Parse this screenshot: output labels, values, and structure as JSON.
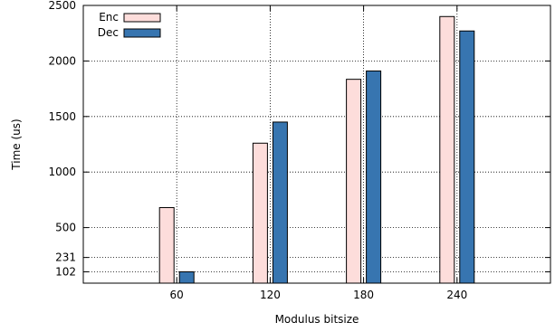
{
  "chart_data": {
    "type": "bar",
    "title": "",
    "xlabel": "Modulus bitsize",
    "ylabel": "Time (us)",
    "ylim": [
      0,
      2500
    ],
    "grid": true,
    "grid_style": "dotted",
    "legend_position": "top-left",
    "categories": [
      "60",
      "120",
      "180",
      "240"
    ],
    "y_ticks": [
      {
        "value": 102,
        "label": "102"
      },
      {
        "value": 231,
        "label": "231"
      },
      {
        "value": 500,
        "label": "500"
      },
      {
        "value": 1000,
        "label": "1000"
      },
      {
        "value": 1500,
        "label": "1500"
      },
      {
        "value": 2000,
        "label": "2000"
      },
      {
        "value": 2500,
        "label": "2500"
      }
    ],
    "series": [
      {
        "name": "Enc",
        "color": "#fddddb",
        "values": [
          680,
          1260,
          1835,
          2400
        ]
      },
      {
        "name": "Dec",
        "color": "#3775b0",
        "values": [
          102,
          1450,
          1910,
          2270
        ]
      }
    ]
  }
}
